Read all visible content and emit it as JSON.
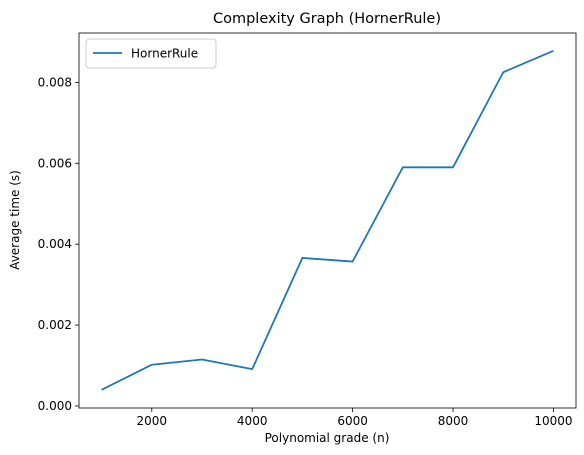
{
  "chart_data": {
    "type": "line",
    "title": "Complexity Graph (HornerRule)",
    "xlabel": "Polynomial grade (n)",
    "ylabel": "Average time (s)",
    "xlim": [
      550,
      10450
    ],
    "ylim": [
      -5e-05,
      0.00922
    ],
    "xticks": [
      2000,
      4000,
      6000,
      8000,
      10000
    ],
    "xtick_labels": [
      "2000",
      "4000",
      "6000",
      "8000",
      "10000"
    ],
    "yticks": [
      0.0,
      0.002,
      0.004,
      0.006,
      0.008
    ],
    "ytick_labels": [
      "0.000",
      "0.002",
      "0.004",
      "0.006",
      "0.008"
    ],
    "grid": false,
    "legend_position": "top-left",
    "series": [
      {
        "name": "HornerRule",
        "color": "#1f77b4",
        "x": [
          1000,
          2000,
          3000,
          4000,
          5000,
          6000,
          7000,
          8000,
          9000,
          10000
        ],
        "y": [
          0.0004,
          0.00102,
          0.00115,
          0.00091,
          0.00366,
          0.00357,
          0.0059,
          0.0059,
          0.00825,
          0.00878
        ]
      }
    ]
  }
}
